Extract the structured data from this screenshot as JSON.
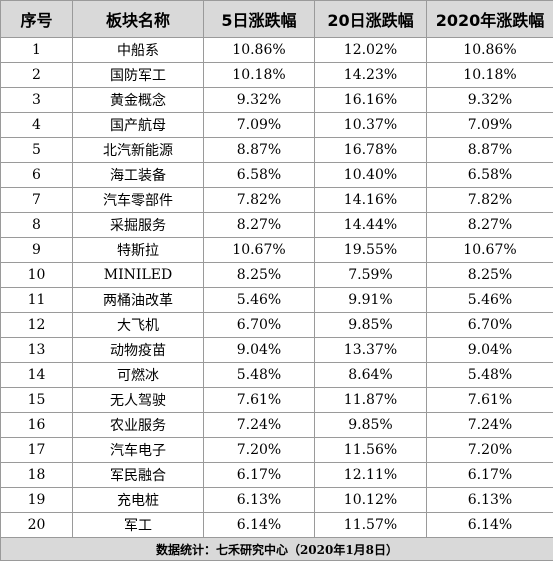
{
  "table": {
    "headers": [
      "序号",
      "板块名称",
      "5日涨跌幅",
      "20日涨跌幅",
      "2020年涨跌幅"
    ],
    "rows": [
      [
        "1",
        "中船系",
        "10.86%",
        "12.02%",
        "10.86%"
      ],
      [
        "2",
        "国防军工",
        "10.18%",
        "14.23%",
        "10.18%"
      ],
      [
        "3",
        "黄金概念",
        "9.32%",
        "16.16%",
        "9.32%"
      ],
      [
        "4",
        "国产航母",
        "7.09%",
        "10.37%",
        "7.09%"
      ],
      [
        "5",
        "北汽新能源",
        "8.87%",
        "16.78%",
        "8.87%"
      ],
      [
        "6",
        "海工装备",
        "6.58%",
        "10.40%",
        "6.58%"
      ],
      [
        "7",
        "汽车零部件",
        "7.82%",
        "14.16%",
        "7.82%"
      ],
      [
        "8",
        "采掘服务",
        "8.27%",
        "14.44%",
        "8.27%"
      ],
      [
        "9",
        "特斯拉",
        "10.67%",
        "19.55%",
        "10.67%"
      ],
      [
        "10",
        "MINILED",
        "8.25%",
        "7.59%",
        "8.25%"
      ],
      [
        "11",
        "两桶油改革",
        "5.46%",
        "9.91%",
        "5.46%"
      ],
      [
        "12",
        "大飞机",
        "6.70%",
        "9.85%",
        "6.70%"
      ],
      [
        "13",
        "动物疫苗",
        "9.04%",
        "13.37%",
        "9.04%"
      ],
      [
        "14",
        "可燃冰",
        "5.48%",
        "8.64%",
        "5.48%"
      ],
      [
        "15",
        "无人驾驶",
        "7.61%",
        "11.87%",
        "7.61%"
      ],
      [
        "16",
        "农业服务",
        "7.24%",
        "9.85%",
        "7.24%"
      ],
      [
        "17",
        "汽车电子",
        "7.20%",
        "11.56%",
        "7.20%"
      ],
      [
        "18",
        "军民融合",
        "6.17%",
        "12.11%",
        "6.17%"
      ],
      [
        "19",
        "充电桩",
        "6.13%",
        "10.12%",
        "6.13%"
      ],
      [
        "20",
        "军工",
        "6.14%",
        "11.57%",
        "6.14%"
      ]
    ],
    "footer": "数据统计：七禾研究中心（2020年1月8日）"
  }
}
